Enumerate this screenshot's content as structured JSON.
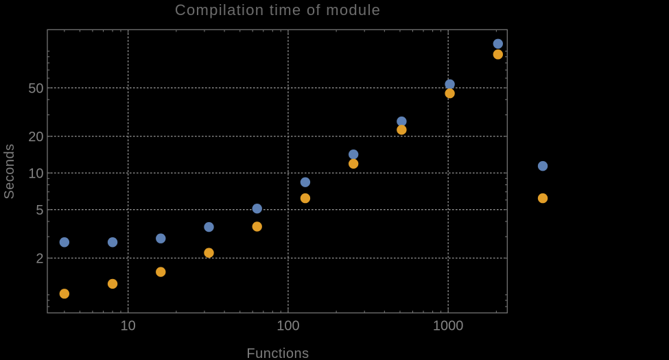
{
  "chart_data": {
    "type": "scatter",
    "title": "Compilation time of module",
    "xlabel": "Functions",
    "ylabel": "Seconds",
    "x_scale": "log",
    "y_scale": "log",
    "xlim": [
      3.13,
      2340
    ],
    "ylim": [
      0.71,
      150
    ],
    "grid": "dotted",
    "legend": null,
    "x": [
      4,
      8,
      16,
      32,
      64,
      128,
      256,
      512,
      1024,
      2048,
      3900
    ],
    "series": [
      {
        "name": "blue",
        "color": "#5e81b5",
        "values": [
          2.7,
          2.7,
          2.9,
          3.6,
          5.1,
          8.4,
          14.2,
          26.5,
          53.5,
          115,
          11.4
        ]
      },
      {
        "name": "orange",
        "color": "#e29e28",
        "values": [
          1.02,
          1.23,
          1.54,
          2.21,
          3.63,
          6.2,
          11.9,
          22.6,
          45,
          94,
          6.2
        ]
      }
    ],
    "x_ticks": {
      "major": [
        {
          "v": 10,
          "label": "10"
        },
        {
          "v": 100,
          "label": "100"
        },
        {
          "v": 1000,
          "label": "1000"
        }
      ],
      "minor": [
        4,
        5,
        6,
        7,
        8,
        9,
        20,
        30,
        40,
        50,
        60,
        70,
        80,
        90,
        200,
        300,
        400,
        500,
        600,
        700,
        800,
        900,
        2000
      ]
    },
    "y_ticks": {
      "major": [
        {
          "v": 2,
          "label": "2"
        },
        {
          "v": 5,
          "label": "5"
        },
        {
          "v": 10,
          "label": "10"
        },
        {
          "v": 20,
          "label": "20"
        },
        {
          "v": 50,
          "label": "50"
        }
      ],
      "minor": [
        0.8,
        0.9,
        1,
        3,
        4,
        6,
        7,
        8,
        9,
        30,
        40,
        60,
        70,
        80,
        90,
        100
      ]
    },
    "colors": {
      "background": "#000000",
      "frame": "#747474",
      "grid": "#969696",
      "tick_labels": "#848484",
      "axis_labels": "#7d7d7d",
      "title": "#6c6c6c"
    },
    "point_radius": 7.2
  }
}
